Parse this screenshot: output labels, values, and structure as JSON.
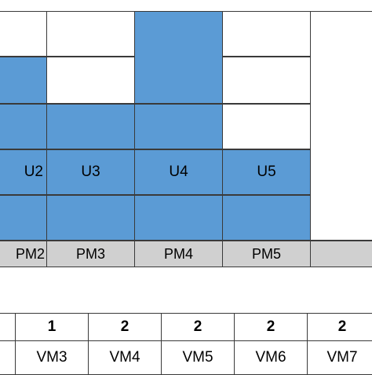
{
  "users": [
    "U2",
    "U3",
    "U4",
    "U5"
  ],
  "pms": [
    "PM2",
    "PM3",
    "PM4",
    "PM5",
    ""
  ],
  "vm_counts": [
    "1",
    "2",
    "2",
    "2",
    "2"
  ],
  "vms": [
    "VM3",
    "VM4",
    "VM5",
    "VM6",
    "VM7"
  ],
  "colors": {
    "allocated": "#5b9bd5",
    "pm_header": "#d0d0d0",
    "border": "#3a3a3a"
  }
}
